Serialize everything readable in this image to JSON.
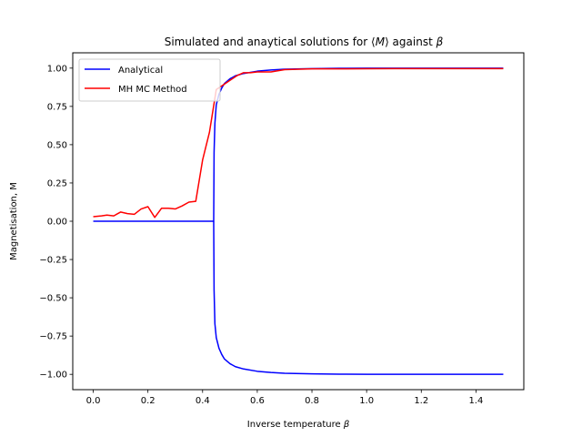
{
  "chart_data": {
    "type": "line",
    "title_parts": {
      "pre": "Simulated and anaytical solutions for ⟨",
      "m": "M",
      "mid": "⟩ against ",
      "beta": "β"
    },
    "xlabel_parts": {
      "pre": "Inverse temperature ",
      "beta": "β"
    },
    "ylabel": "Magnetisation, M",
    "xlim": [
      -0.075,
      1.575
    ],
    "ylim": [
      -1.1,
      1.1
    ],
    "xticks": [
      0.0,
      0.2,
      0.4,
      0.6,
      0.8,
      1.0,
      1.2,
      1.4
    ],
    "xtick_labels": [
      "0.0",
      "0.2",
      "0.4",
      "0.6",
      "0.8",
      "1.0",
      "1.2",
      "1.4"
    ],
    "yticks": [
      -1.0,
      -0.75,
      -0.5,
      -0.25,
      0.0,
      0.25,
      0.5,
      0.75,
      1.0
    ],
    "ytick_labels": [
      "−1.00",
      "−0.75",
      "−0.50",
      "−0.25",
      "0.00",
      "0.25",
      "0.50",
      "0.75",
      "1.00"
    ],
    "grid": false,
    "legend_position": "top-left",
    "series": [
      {
        "name": "Analytical",
        "color": "#0000ff",
        "x": [
          0.0,
          0.1,
          0.2,
          0.3,
          0.4,
          0.4406,
          0.442,
          0.445,
          0.45,
          0.46,
          0.47,
          0.48,
          0.5,
          0.52,
          0.55,
          0.6,
          0.65,
          0.7,
          0.8,
          0.9,
          1.0,
          1.1,
          1.2,
          1.3,
          1.4,
          1.5
        ],
        "y": [
          0.0,
          0.0,
          0.0,
          0.0,
          0.0,
          0.0,
          0.45,
          0.64,
          0.76,
          0.83,
          0.87,
          0.9,
          0.93,
          0.95,
          0.965,
          0.98,
          0.988,
          0.993,
          0.997,
          0.999,
          0.9995,
          1.0,
          1.0,
          1.0,
          1.0,
          1.0
        ]
      },
      {
        "name": "",
        "color": "#0000ff",
        "x": [
          0.4406,
          0.442,
          0.445,
          0.45,
          0.46,
          0.47,
          0.48,
          0.5,
          0.52,
          0.55,
          0.6,
          0.65,
          0.7,
          0.8,
          0.9,
          1.0,
          1.1,
          1.2,
          1.3,
          1.4,
          1.5
        ],
        "y": [
          0.0,
          -0.45,
          -0.67,
          -0.76,
          -0.83,
          -0.87,
          -0.9,
          -0.93,
          -0.95,
          -0.965,
          -0.98,
          -0.988,
          -0.993,
          -0.997,
          -0.999,
          -0.9995,
          -1.0,
          -1.0,
          -1.0,
          -1.0,
          -1.0
        ]
      },
      {
        "name": "MH MC Method",
        "color": "#ff0000",
        "x": [
          0.0,
          0.03,
          0.05,
          0.075,
          0.1,
          0.125,
          0.15,
          0.175,
          0.2,
          0.225,
          0.25,
          0.275,
          0.3,
          0.325,
          0.35,
          0.375,
          0.4,
          0.425,
          0.45,
          0.475,
          0.5,
          0.525,
          0.55,
          0.575,
          0.6,
          0.625,
          0.65,
          0.7,
          0.8,
          0.9,
          1.0,
          1.1,
          1.2,
          1.3,
          1.4,
          1.5
        ],
        "y": [
          0.03,
          0.035,
          0.04,
          0.035,
          0.06,
          0.05,
          0.045,
          0.08,
          0.095,
          0.025,
          0.085,
          0.085,
          0.08,
          0.1,
          0.125,
          0.13,
          0.4,
          0.58,
          0.86,
          0.89,
          0.92,
          0.95,
          0.97,
          0.97,
          0.975,
          0.975,
          0.975,
          0.99,
          0.995,
          0.995,
          0.996,
          0.997,
          0.997,
          0.997,
          0.997,
          0.997
        ]
      }
    ]
  }
}
